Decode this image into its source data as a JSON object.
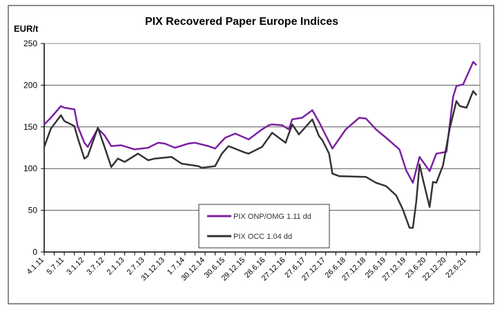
{
  "chart_data": {
    "type": "line",
    "title": "PIX Recovered Paper Europe Indices",
    "ylabel": "EUR/t",
    "xlabel": "",
    "ylim": [
      0,
      250
    ],
    "yticks": [
      0,
      50,
      100,
      150,
      200,
      250
    ],
    "xlim": [
      "2011-01",
      "2021-11"
    ],
    "xtick_labels": [
      "4.1.11",
      "5.7.11",
      "3.1.12",
      "3.7.12",
      "2.1.13",
      "2.7.13",
      "31.12.13",
      "1.7.14",
      "30.12.14",
      "30.6.15",
      "29.12.15",
      "28.6.16",
      "27.12.16",
      "27.6.17",
      "27.12.17",
      "26.6.18",
      "27.12.18",
      "25.6.19",
      "27.12.19",
      "23.6.20",
      "22.12.20",
      "22.6.21"
    ],
    "grid": true,
    "legend_placement": "bottom-center",
    "series": [
      {
        "name": "PIX ONP/OMG 1.11 dd",
        "color": "#7b1fa2",
        "points": [
          [
            "2011-01",
            153
          ],
          [
            "2011-03",
            161
          ],
          [
            "2011-06",
            175
          ],
          [
            "2011-07",
            173
          ],
          [
            "2011-10",
            171
          ],
          [
            "2011-11",
            151
          ],
          [
            "2012-01",
            131
          ],
          [
            "2012-02",
            126
          ],
          [
            "2012-05",
            148
          ],
          [
            "2012-07",
            140
          ],
          [
            "2012-09",
            127
          ],
          [
            "2012-12",
            128
          ],
          [
            "2013-04",
            123
          ],
          [
            "2013-08",
            125
          ],
          [
            "2013-11",
            131
          ],
          [
            "2014-01",
            130
          ],
          [
            "2014-04",
            125
          ],
          [
            "2014-08",
            130
          ],
          [
            "2014-10",
            131
          ],
          [
            "2015-02",
            127
          ],
          [
            "2015-04",
            124
          ],
          [
            "2015-07",
            137
          ],
          [
            "2015-10",
            142
          ],
          [
            "2016-02",
            135
          ],
          [
            "2016-06",
            147
          ],
          [
            "2016-08",
            152
          ],
          [
            "2016-09",
            153
          ],
          [
            "2016-12",
            152
          ],
          [
            "2017-02",
            147
          ],
          [
            "2017-03",
            159
          ],
          [
            "2017-06",
            161
          ],
          [
            "2017-09",
            170
          ],
          [
            "2017-11",
            156
          ],
          [
            "2018-03",
            124
          ],
          [
            "2018-07",
            147
          ],
          [
            "2018-11",
            161
          ],
          [
            "2019-01",
            160
          ],
          [
            "2019-04",
            147
          ],
          [
            "2019-07",
            137
          ],
          [
            "2019-11",
            123
          ],
          [
            "2020-01",
            98
          ],
          [
            "2020-03",
            83
          ],
          [
            "2020-05",
            114
          ],
          [
            "2020-08",
            97
          ],
          [
            "2020-10",
            118
          ],
          [
            "2021-01",
            120
          ],
          [
            "2021-03",
            186
          ],
          [
            "2021-04",
            199
          ],
          [
            "2021-06",
            201
          ],
          [
            "2021-09",
            228
          ],
          [
            "2021-10",
            224
          ]
        ]
      },
      {
        "name": "PIX OCC 1.04 dd",
        "color": "#333333",
        "points": [
          [
            "2011-01",
            126
          ],
          [
            "2011-03",
            148
          ],
          [
            "2011-06",
            164
          ],
          [
            "2011-07",
            157
          ],
          [
            "2011-10",
            151
          ],
          [
            "2011-11",
            137
          ],
          [
            "2012-01",
            112
          ],
          [
            "2012-02",
            115
          ],
          [
            "2012-05",
            149
          ],
          [
            "2012-07",
            126
          ],
          [
            "2012-09",
            102
          ],
          [
            "2012-11",
            112
          ],
          [
            "2013-01",
            108
          ],
          [
            "2013-05",
            118
          ],
          [
            "2013-08",
            110
          ],
          [
            "2013-10",
            112
          ],
          [
            "2014-03",
            114
          ],
          [
            "2014-06",
            106
          ],
          [
            "2014-11",
            103
          ],
          [
            "2014-12",
            101
          ],
          [
            "2015-04",
            103
          ],
          [
            "2015-06",
            118
          ],
          [
            "2015-08",
            127
          ],
          [
            "2016-01",
            119
          ],
          [
            "2016-02",
            118
          ],
          [
            "2016-06",
            126
          ],
          [
            "2016-09",
            143
          ],
          [
            "2017-01",
            131
          ],
          [
            "2017-03",
            153
          ],
          [
            "2017-05",
            141
          ],
          [
            "2017-09",
            159
          ],
          [
            "2017-11",
            139
          ],
          [
            "2017-12",
            134
          ],
          [
            "2018-02",
            118
          ],
          [
            "2018-03",
            94
          ],
          [
            "2018-05",
            91
          ],
          [
            "2019-01",
            90
          ],
          [
            "2019-04",
            83
          ],
          [
            "2019-07",
            79
          ],
          [
            "2019-10",
            68
          ],
          [
            "2019-12",
            51
          ],
          [
            "2020-02",
            29
          ],
          [
            "2020-03",
            29
          ],
          [
            "2020-04",
            60
          ],
          [
            "2020-05",
            105
          ],
          [
            "2020-06",
            87
          ],
          [
            "2020-08",
            54
          ],
          [
            "2020-09",
            84
          ],
          [
            "2020-10",
            83
          ],
          [
            "2020-12",
            104
          ],
          [
            "2021-02",
            148
          ],
          [
            "2021-04",
            181
          ],
          [
            "2021-05",
            175
          ],
          [
            "2021-07",
            173
          ],
          [
            "2021-09",
            193
          ],
          [
            "2021-10",
            188
          ]
        ]
      }
    ]
  }
}
